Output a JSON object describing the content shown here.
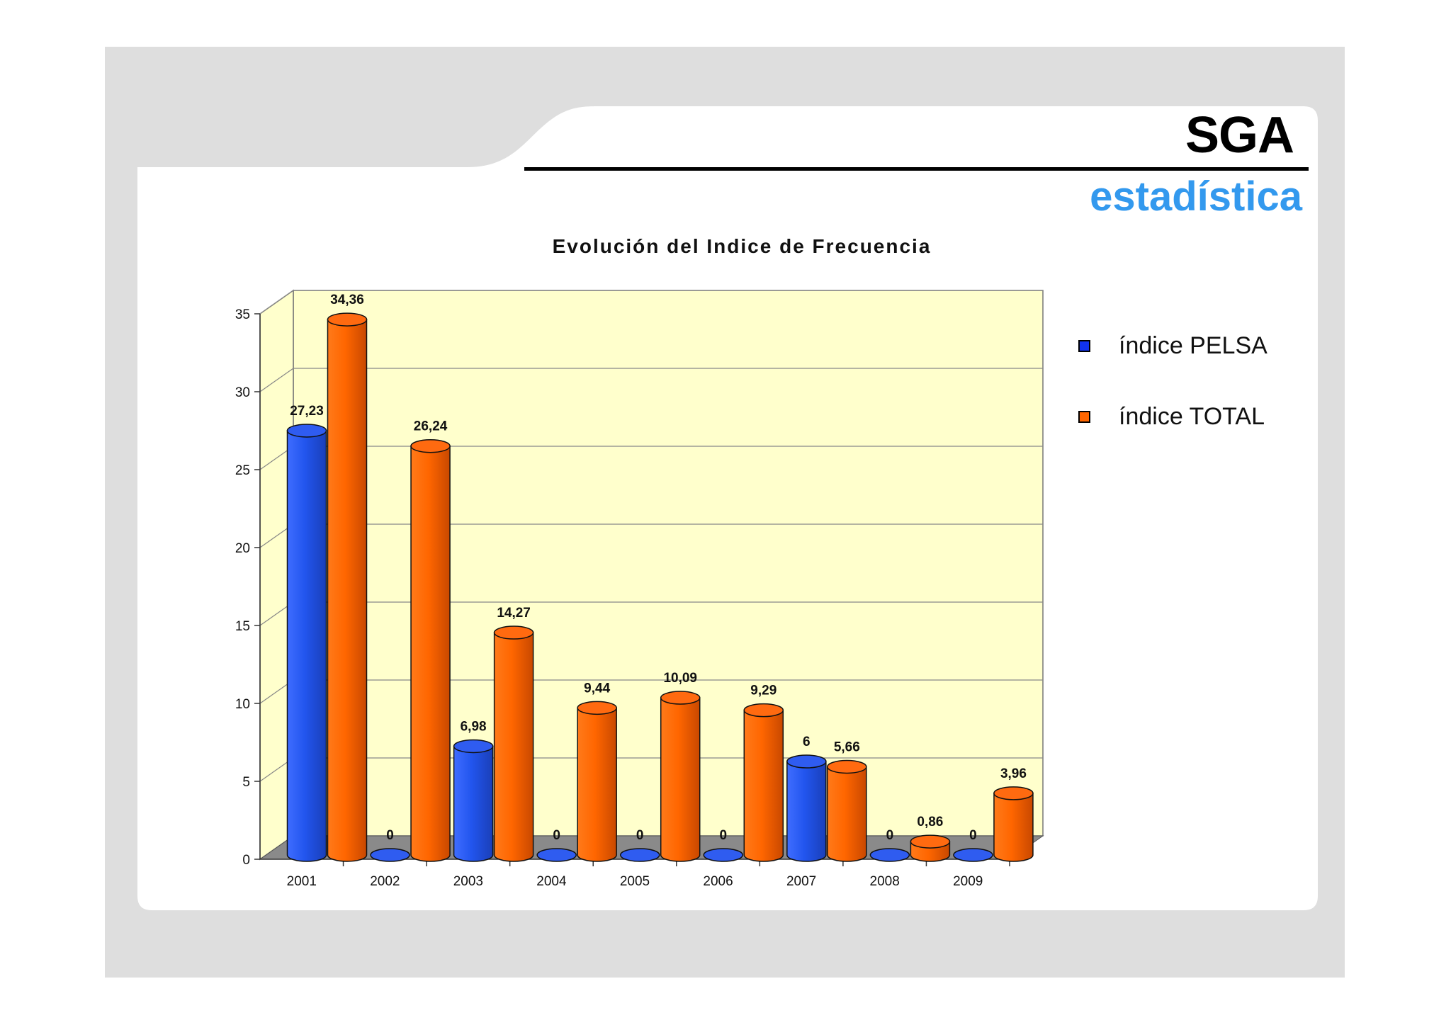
{
  "header": {
    "title": "SGA",
    "subtitle": "estadística",
    "accent_color": "#3399ee"
  },
  "chart_data": {
    "type": "bar",
    "title": "Evolución del Indice de Frecuencia",
    "categories": [
      "2001",
      "2002",
      "2003",
      "2004",
      "2005",
      "2006",
      "2007",
      "2008",
      "2009"
    ],
    "series": [
      {
        "name": "índice PELSA",
        "color": "#2255ee",
        "values": [
          27.23,
          0,
          6.98,
          0,
          0,
          0,
          6,
          0,
          0
        ],
        "labels": [
          "27,23",
          "0",
          "6,98",
          "0",
          "0",
          "0",
          "6",
          "0",
          "0"
        ]
      },
      {
        "name": "índice TOTAL",
        "color": "#ff6600",
        "values": [
          34.36,
          26.24,
          14.27,
          9.44,
          10.09,
          9.29,
          5.66,
          0.86,
          3.96
        ],
        "labels": [
          "34,36",
          "26,24",
          "14,27",
          "9,44",
          "10,09",
          "9,29",
          "5,66",
          "0,86",
          "3,96"
        ]
      }
    ],
    "yticks": [
      "0",
      "5",
      "10",
      "15",
      "20",
      "25",
      "30",
      "35"
    ],
    "ylim": [
      0,
      35
    ],
    "grid": true,
    "legend_position": "right",
    "plot_background": "#ffffcc"
  }
}
